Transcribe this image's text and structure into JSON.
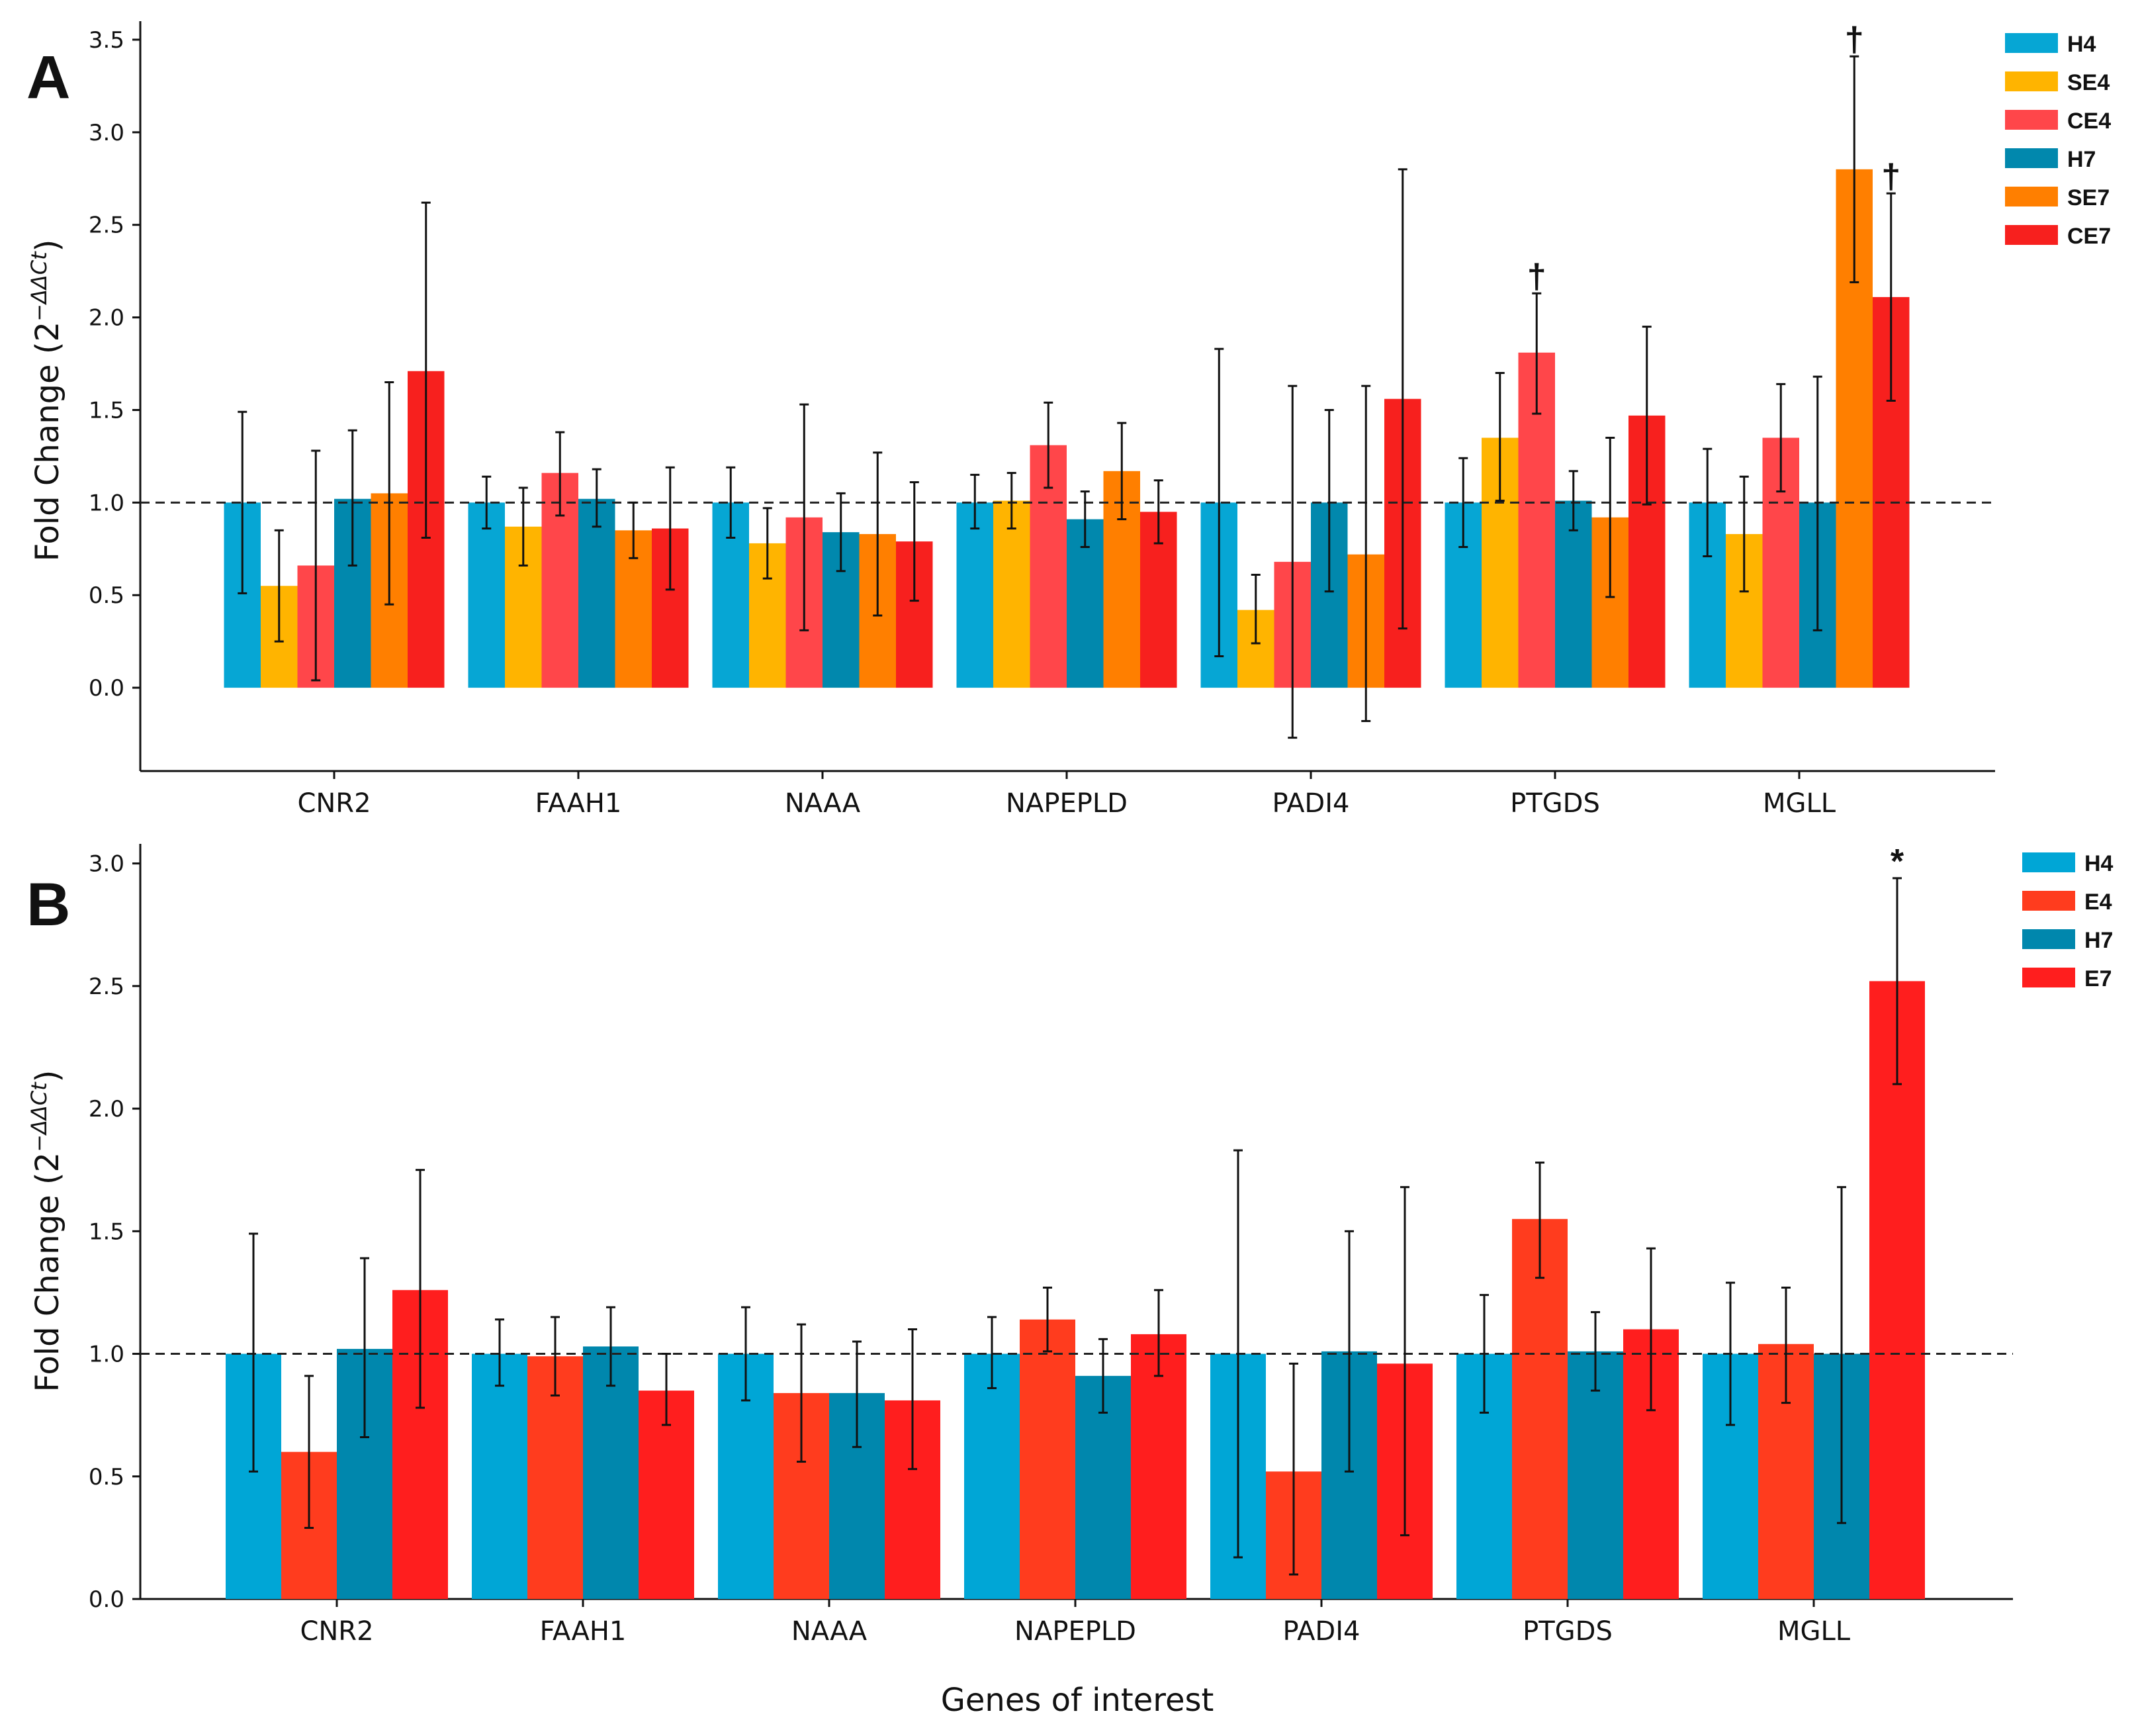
{
  "figure": {
    "xlabel": "Genes of interest"
  },
  "chart_data": [
    {
      "type": "bar",
      "panel": "A",
      "title": "",
      "xlabel": "",
      "ylabel": "Fold Change (2",
      "ylabel_sup": "−ΔΔCt",
      "ylim": [
        -0.45,
        3.6
      ],
      "yticks": [
        "0.0",
        "0.5",
        "1.0",
        "1.5",
        "2.0",
        "2.5",
        "3.0",
        "3.5"
      ],
      "reference_line": 1.0,
      "categories": [
        "CNR2",
        "FAAH1",
        "NAAA",
        "NAPEPLD",
        "PADI4",
        "PTGDS",
        "MGLL"
      ],
      "series": [
        {
          "name": "H4",
          "color": "#06A6D4",
          "values": [
            1.0,
            1.0,
            1.0,
            1.0,
            1.0,
            1.0,
            1.0
          ],
          "err_low": [
            0.51,
            0.86,
            0.81,
            0.86,
            0.17,
            0.76,
            0.71
          ],
          "err_high": [
            1.49,
            1.14,
            1.19,
            1.15,
            1.83,
            1.24,
            1.29
          ]
        },
        {
          "name": "SE4",
          "color": "#FFB400",
          "values": [
            0.55,
            0.87,
            0.78,
            1.01,
            0.42,
            1.35,
            0.83
          ],
          "err_low": [
            0.25,
            0.66,
            0.59,
            0.86,
            0.24,
            1.01,
            0.52
          ],
          "err_high": [
            0.85,
            1.08,
            0.97,
            1.16,
            0.61,
            1.7,
            1.14
          ]
        },
        {
          "name": "CE4",
          "color": "#FF464A",
          "values": [
            0.66,
            1.16,
            0.92,
            1.31,
            0.68,
            1.81,
            1.35
          ],
          "err_low": [
            0.04,
            0.93,
            0.31,
            1.08,
            -0.27,
            1.48,
            1.06
          ],
          "err_high": [
            1.28,
            1.38,
            1.53,
            1.54,
            1.63,
            2.13,
            1.64
          ]
        },
        {
          "name": "H7",
          "color": "#0188AD",
          "values": [
            1.02,
            1.02,
            0.84,
            0.91,
            1.0,
            1.01,
            1.0
          ],
          "err_low": [
            0.66,
            0.87,
            0.63,
            0.76,
            0.52,
            0.85,
            0.31
          ],
          "err_high": [
            1.39,
            1.18,
            1.05,
            1.06,
            1.5,
            1.17,
            1.68
          ]
        },
        {
          "name": "SE7",
          "color": "#FF7F00",
          "values": [
            1.05,
            0.85,
            0.83,
            1.17,
            0.72,
            0.92,
            2.8
          ],
          "err_low": [
            0.45,
            0.7,
            0.39,
            0.91,
            -0.18,
            0.49,
            2.19
          ],
          "err_high": [
            1.65,
            1.0,
            1.27,
            1.43,
            1.63,
            1.35,
            3.41
          ]
        },
        {
          "name": "CE7",
          "color": "#F7201E",
          "values": [
            1.71,
            0.86,
            0.79,
            0.95,
            1.56,
            1.47,
            2.11
          ],
          "err_low": [
            0.81,
            0.53,
            0.47,
            0.78,
            0.32,
            0.99,
            1.55
          ],
          "err_high": [
            2.62,
            1.19,
            1.11,
            1.12,
            2.8,
            1.95,
            2.67
          ]
        }
      ],
      "annotations": [
        {
          "text": "†",
          "category": "PTGDS",
          "series": "CE4"
        },
        {
          "text": "†",
          "category": "MGLL",
          "series": "SE7"
        },
        {
          "text": "†",
          "category": "MGLL",
          "series": "CE7"
        }
      ],
      "legend": "top-right"
    },
    {
      "type": "bar",
      "panel": "B",
      "title": "",
      "xlabel": "",
      "ylabel": "Fold Change (2",
      "ylabel_sup": "−ΔΔCt",
      "ylim": [
        0.0,
        3.08
      ],
      "yticks": [
        "0.0",
        "0.5",
        "1.0",
        "1.5",
        "2.0",
        "2.5",
        "3.0"
      ],
      "reference_line": 1.0,
      "categories": [
        "CNR2",
        "FAAH1",
        "NAAA",
        "NAPEPLD",
        "PADI4",
        "PTGDS",
        "MGLL"
      ],
      "series": [
        {
          "name": "H4",
          "color": "#00A6D6",
          "values": [
            1.0,
            1.0,
            1.0,
            1.0,
            1.0,
            1.0,
            1.0
          ],
          "err_low": [
            0.52,
            0.87,
            0.81,
            0.86,
            0.17,
            0.76,
            0.71
          ],
          "err_high": [
            1.49,
            1.14,
            1.19,
            1.15,
            1.83,
            1.24,
            1.29
          ]
        },
        {
          "name": "E4",
          "color": "#FF3C1E",
          "values": [
            0.6,
            0.99,
            0.84,
            1.14,
            0.52,
            1.55,
            1.04
          ],
          "err_low": [
            0.29,
            0.83,
            0.56,
            1.01,
            0.1,
            1.31,
            0.8
          ],
          "err_high": [
            0.91,
            1.15,
            1.12,
            1.27,
            0.96,
            1.78,
            1.27
          ]
        },
        {
          "name": "H7",
          "color": "#0087AD",
          "values": [
            1.02,
            1.03,
            0.84,
            0.91,
            1.01,
            1.01,
            1.0
          ],
          "err_low": [
            0.66,
            0.87,
            0.62,
            0.76,
            0.52,
            0.85,
            0.31
          ],
          "err_high": [
            1.39,
            1.19,
            1.05,
            1.06,
            1.5,
            1.17,
            1.68
          ]
        },
        {
          "name": "E7",
          "color": "#FF1E1E",
          "values": [
            1.26,
            0.85,
            0.81,
            1.08,
            0.96,
            1.1,
            2.52
          ],
          "err_low": [
            0.78,
            0.71,
            0.53,
            0.91,
            0.26,
            0.77,
            2.1
          ],
          "err_high": [
            1.75,
            1.0,
            1.1,
            1.26,
            1.68,
            1.43,
            2.94
          ]
        }
      ],
      "annotations": [
        {
          "text": "*",
          "category": "MGLL",
          "series": "E7"
        }
      ],
      "legend": "top-right"
    }
  ]
}
